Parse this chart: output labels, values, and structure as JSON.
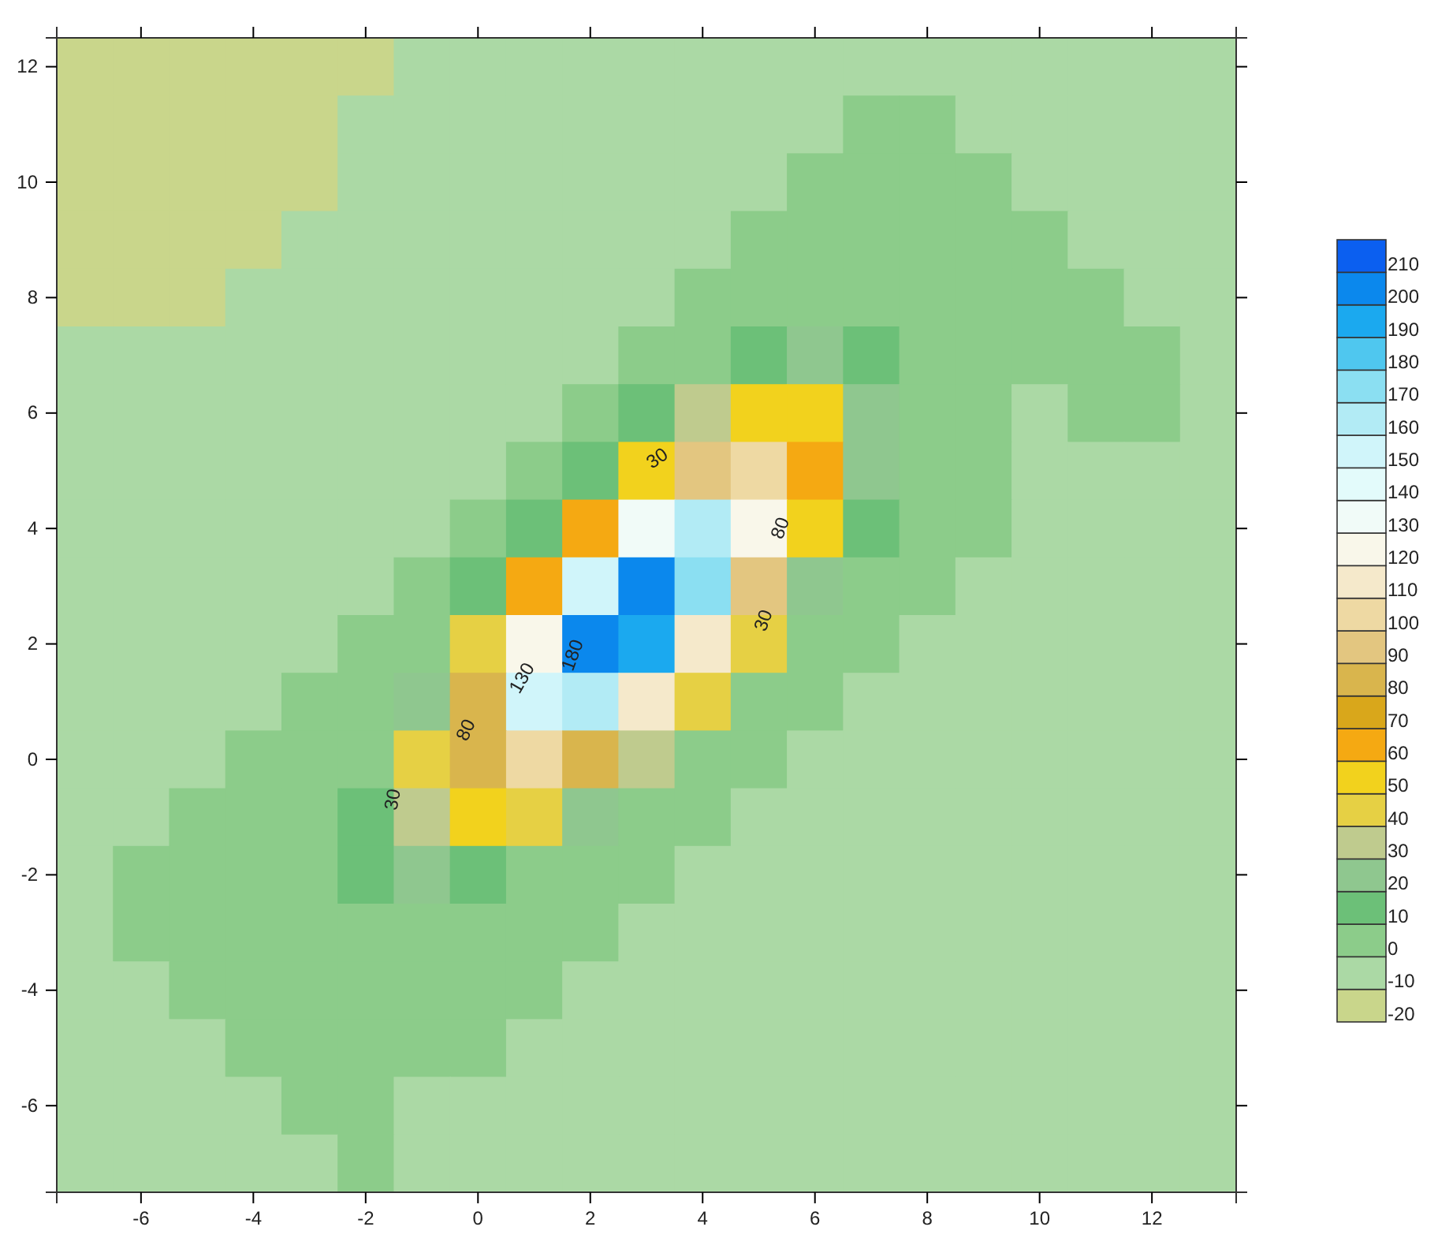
{
  "chart_data": {
    "type": "heatmap",
    "categories": [
      null,
      "-6",
      null,
      "-4",
      null,
      "-2",
      null,
      "0",
      null,
      "2",
      null,
      "4",
      null,
      "6",
      null,
      "8",
      null,
      "10",
      null,
      "12",
      null
    ],
    "y_categories": [
      "12",
      null,
      "10",
      null,
      "8",
      null,
      "6",
      null,
      "4",
      null,
      "2",
      null,
      "0",
      null,
      "-2",
      null,
      "-4",
      null,
      "-6",
      null
    ],
    "clim": [
      -20,
      220
    ],
    "cticks": [
      -20,
      -10,
      0,
      10,
      20,
      30,
      40,
      50,
      60,
      70,
      80,
      90,
      100,
      110,
      120,
      130,
      140,
      150,
      160,
      170,
      180,
      190,
      200,
      210
    ],
    "cells": [
      [
        -15,
        -15,
        -15,
        -15,
        -15,
        -15,
        -5,
        -5,
        -5,
        -5,
        -5,
        -5,
        -5,
        -5,
        -5,
        -5,
        -5,
        -5,
        -5,
        -5,
        -5
      ],
      [
        -15,
        -15,
        -15,
        -15,
        -15,
        -5,
        -5,
        -5,
        -5,
        -5,
        -5,
        -5,
        -5,
        -5,
        5,
        5,
        -5,
        -5,
        -5,
        -5,
        -5
      ],
      [
        -15,
        -15,
        -15,
        -15,
        -15,
        -5,
        -5,
        -5,
        -5,
        -5,
        -5,
        -5,
        -5,
        5,
        5,
        5,
        5,
        -5,
        -5,
        -5,
        -5
      ],
      [
        -15,
        -15,
        -15,
        -15,
        -5,
        -5,
        -5,
        -5,
        -5,
        -5,
        -5,
        -5,
        5,
        5,
        5,
        5,
        5,
        5,
        -5,
        -5,
        -5
      ],
      [
        -15,
        -15,
        -15,
        -5,
        -5,
        -5,
        -5,
        -5,
        -5,
        -5,
        -5,
        5,
        5,
        5,
        5,
        5,
        5,
        5,
        5,
        -5,
        -5
      ],
      [
        -5,
        -5,
        -5,
        -5,
        -5,
        -5,
        -5,
        -5,
        -5,
        -5,
        5,
        5,
        13,
        21,
        17,
        5,
        5,
        5,
        5,
        5,
        -5
      ],
      [
        -5,
        -5,
        -5,
        -5,
        -5,
        -5,
        -5,
        -5,
        -5,
        5,
        10,
        32,
        53,
        50,
        28,
        7,
        5,
        -5,
        5,
        5,
        -5
      ],
      [
        -5,
        -5,
        -5,
        -5,
        -5,
        -5,
        -5,
        -5,
        5,
        16,
        54,
        97,
        105,
        69,
        26,
        5,
        5,
        -5,
        -5,
        -5,
        -5
      ],
      [
        -5,
        -5,
        -5,
        -5,
        -5,
        -5,
        -5,
        5,
        18,
        67,
        137,
        168,
        127,
        57,
        13,
        5,
        5,
        -5,
        -5,
        -5,
        -5
      ],
      [
        -5,
        -5,
        -5,
        -5,
        -5,
        -5,
        5,
        14,
        65,
        150,
        207,
        177,
        93,
        28,
        5,
        5,
        -5,
        -5,
        -5,
        -5,
        -5
      ],
      [
        -5,
        -5,
        -5,
        -5,
        -5,
        5,
        8,
        48,
        127,
        200,
        194,
        115,
        40,
        5,
        5,
        -5,
        -5,
        -5,
        -5,
        -5,
        -5
      ],
      [
        -5,
        -5,
        -5,
        -5,
        5,
        5,
        27,
        84,
        150,
        165,
        111,
        44,
        7,
        5,
        -5,
        -5,
        -5,
        -5,
        -5,
        -5,
        -5
      ],
      [
        -5,
        -5,
        -5,
        5,
        5,
        9,
        42,
        88,
        109,
        83,
        36,
        7,
        5,
        -5,
        -5,
        -5,
        -5,
        -5,
        -5,
        -5,
        -5
      ],
      [
        -5,
        -5,
        5,
        5,
        5,
        14,
        38,
        55,
        47,
        23,
        5,
        5,
        -5,
        -5,
        -5,
        -5,
        -5,
        -5,
        -5,
        -5,
        -5
      ],
      [
        -5,
        5,
        5,
        5,
        5,
        10,
        20,
        19,
        9,
        5,
        5,
        -5,
        -5,
        -5,
        -5,
        -5,
        -5,
        -5,
        -5,
        -5,
        -5
      ],
      [
        -5,
        5,
        5,
        5,
        5,
        5,
        5,
        5,
        5,
        5,
        -5,
        -5,
        -5,
        -5,
        -5,
        -5,
        -5,
        -5,
        -5,
        -5,
        -5
      ],
      [
        -5,
        -5,
        5,
        5,
        5,
        5,
        5,
        5,
        5,
        -5,
        -5,
        -5,
        -5,
        -5,
        -5,
        -5,
        -5,
        -5,
        -5,
        -5,
        -5
      ],
      [
        -5,
        -5,
        -5,
        5,
        5,
        5,
        5,
        5,
        -5,
        -5,
        -5,
        -5,
        -5,
        -5,
        -5,
        -5,
        -5,
        -5,
        -5,
        -5,
        -5
      ],
      [
        -5,
        -5,
        -5,
        -5,
        5,
        5,
        -5,
        -5,
        -5,
        -5,
        -5,
        -5,
        -5,
        -5,
        -5,
        -5,
        -5,
        -5,
        -5,
        -5,
        -5
      ],
      [
        -5,
        -5,
        -5,
        -5,
        -5,
        5,
        -5,
        -5,
        -5,
        -5,
        -5,
        -5,
        -5,
        -5,
        -5,
        -5,
        -5,
        -5,
        -5,
        -5,
        -5
      ]
    ],
    "annotations": [
      "30",
      "80",
      "30",
      "180",
      "130",
      "80",
      "30"
    ]
  }
}
